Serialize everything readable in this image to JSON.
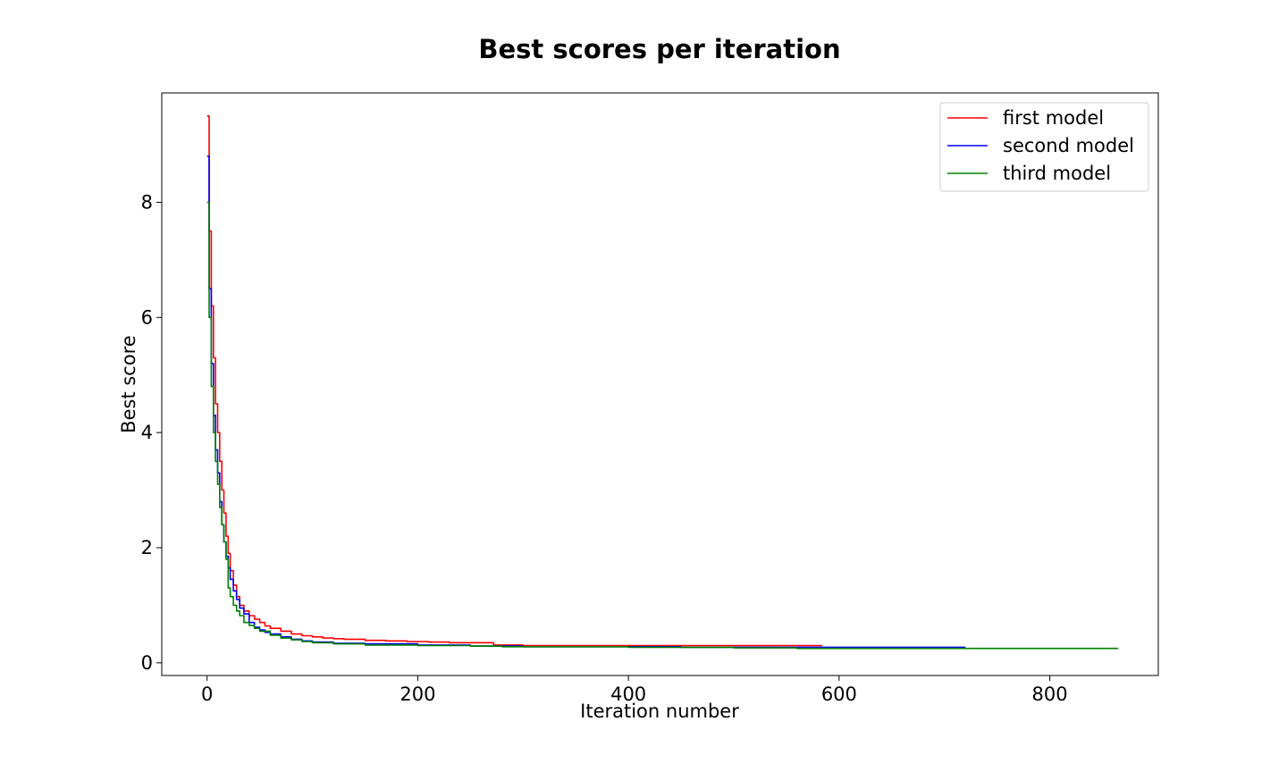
{
  "chart_data": {
    "type": "line",
    "title": "Best scores per iteration",
    "xlabel": "Iteration number",
    "ylabel": "Best score",
    "xlim": [
      -43,
      903
    ],
    "ylim": [
      -0.22,
      9.9
    ],
    "xticks": [
      0,
      200,
      400,
      600,
      800
    ],
    "yticks": [
      0,
      2,
      4,
      6,
      8
    ],
    "grid": false,
    "legend_position": "top-right",
    "series": [
      {
        "name": "first model",
        "color": "#ff0000",
        "x": [
          0,
          2,
          4,
          6,
          8,
          10,
          12,
          14,
          16,
          18,
          20,
          22,
          25,
          28,
          31,
          35,
          40,
          45,
          50,
          55,
          60,
          70,
          80,
          90,
          100,
          110,
          120,
          130,
          150,
          170,
          190,
          210,
          230,
          250,
          270,
          272,
          300,
          350,
          400,
          440,
          500,
          584
        ],
        "y": [
          9.5,
          7.5,
          6.2,
          5.3,
          4.5,
          4.0,
          3.5,
          3.0,
          2.6,
          2.2,
          1.9,
          1.6,
          1.35,
          1.15,
          1.0,
          0.9,
          0.82,
          0.76,
          0.7,
          0.64,
          0.6,
          0.55,
          0.5,
          0.47,
          0.45,
          0.43,
          0.42,
          0.41,
          0.39,
          0.38,
          0.37,
          0.36,
          0.35,
          0.35,
          0.35,
          0.31,
          0.3,
          0.3,
          0.3,
          0.3,
          0.3,
          0.3
        ]
      },
      {
        "name": "second model",
        "color": "#0000ff",
        "x": [
          0,
          2,
          4,
          6,
          8,
          10,
          12,
          14,
          16,
          18,
          20,
          22,
          25,
          28,
          31,
          35,
          40,
          45,
          50,
          55,
          60,
          70,
          80,
          90,
          100,
          120,
          150,
          200,
          250,
          300,
          350,
          400,
          440,
          450,
          500,
          600,
          700,
          720
        ],
        "y": [
          8.8,
          6.5,
          5.2,
          4.3,
          3.7,
          3.3,
          2.8,
          2.4,
          2.1,
          1.85,
          1.65,
          1.45,
          1.25,
          1.1,
          0.95,
          0.85,
          0.7,
          0.62,
          0.57,
          0.53,
          0.5,
          0.45,
          0.41,
          0.38,
          0.36,
          0.34,
          0.33,
          0.31,
          0.29,
          0.28,
          0.28,
          0.28,
          0.28,
          0.27,
          0.27,
          0.27,
          0.27,
          0.27
        ]
      },
      {
        "name": "third model",
        "color": "#008000",
        "x": [
          0,
          2,
          4,
          6,
          8,
          10,
          12,
          14,
          16,
          18,
          20,
          22,
          25,
          28,
          31,
          35,
          40,
          45,
          50,
          60,
          70,
          80,
          90,
          100,
          120,
          150,
          200,
          250,
          280,
          300,
          400,
          500,
          555,
          560,
          600,
          700,
          800,
          865
        ],
        "y": [
          8.0,
          6.0,
          4.8,
          4.0,
          3.5,
          3.1,
          2.7,
          2.4,
          2.1,
          1.8,
          1.3,
          1.15,
          1.0,
          0.9,
          0.82,
          0.7,
          0.65,
          0.6,
          0.55,
          0.48,
          0.43,
          0.4,
          0.37,
          0.35,
          0.33,
          0.31,
          0.3,
          0.29,
          0.28,
          0.28,
          0.27,
          0.26,
          0.26,
          0.25,
          0.25,
          0.25,
          0.25,
          0.25
        ]
      }
    ]
  }
}
